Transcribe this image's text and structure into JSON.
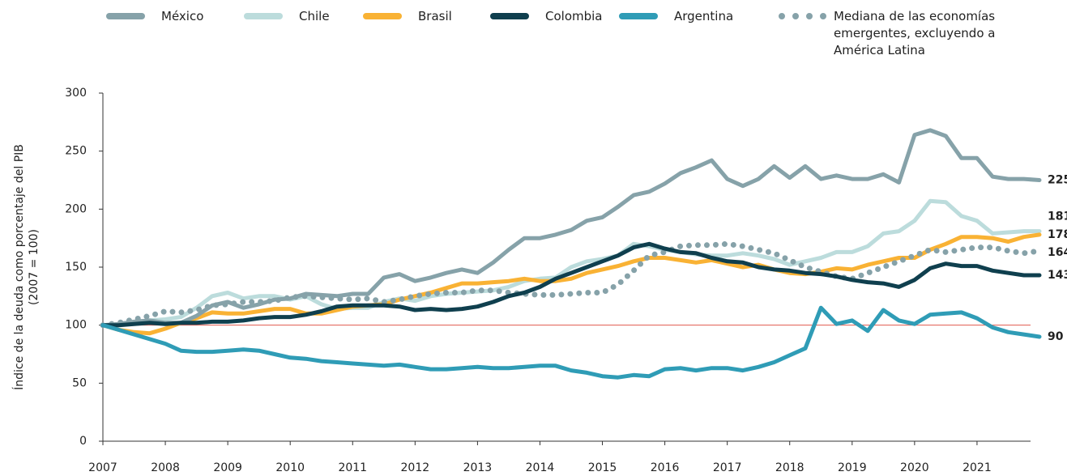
{
  "chart_data": {
    "type": "line",
    "ylabel": [
      "Índice de la deuda como porcentaje del PIB",
      "(2007 = 100)"
    ],
    "x": [
      2007,
      2007.25,
      2007.5,
      2007.75,
      2008,
      2008.25,
      2008.5,
      2008.75,
      2009,
      2009.25,
      2009.5,
      2009.75,
      2010,
      2010.25,
      2010.5,
      2010.75,
      2011,
      2011.25,
      2011.5,
      2011.75,
      2012,
      2012.25,
      2012.5,
      2012.75,
      2013,
      2013.25,
      2013.5,
      2013.75,
      2014,
      2014.25,
      2014.5,
      2014.75,
      2015,
      2015.25,
      2015.5,
      2015.75,
      2016,
      2016.25,
      2016.5,
      2016.75,
      2017,
      2017.25,
      2017.5,
      2017.75,
      2018,
      2018.25,
      2018.5,
      2018.75,
      2019,
      2019.25,
      2019.5,
      2019.75,
      2020,
      2020.25,
      2020.5,
      2020.75,
      2021,
      2021.25,
      2021.5,
      2021.75,
      2022
    ],
    "xlim": [
      2007,
      2022
    ],
    "xticks": [
      2007,
      2008,
      2009,
      2010,
      2011,
      2012,
      2013,
      2014,
      2015,
      2016,
      2017,
      2018,
      2019,
      2020,
      2021
    ],
    "ylim": [
      0,
      300
    ],
    "yticks": [
      0,
      50,
      100,
      150,
      200,
      250,
      300
    ],
    "reference_line": {
      "value": 100,
      "color": "#e05a4e"
    },
    "series": [
      {
        "name": "México",
        "color": "#86a2a9",
        "style": "solid",
        "values": [
          100,
          101,
          103,
          104,
          102,
          102,
          108,
          117,
          120,
          115,
          118,
          122,
          123,
          127,
          126,
          125,
          127,
          127,
          141,
          144,
          138,
          141,
          145,
          148,
          145,
          154,
          165,
          175,
          175,
          178,
          182,
          190,
          193,
          202,
          212,
          215,
          222,
          231,
          236,
          242,
          226,
          220,
          226,
          237,
          227,
          237,
          226,
          229,
          226,
          226,
          230,
          223,
          264,
          268,
          263,
          244,
          244,
          228,
          226,
          226,
          225
        ]
      },
      {
        "name": "Chile",
        "color": "#bcdcdc",
        "style": "solid",
        "values": [
          100,
          100,
          102,
          104,
          105,
          107,
          115,
          125,
          128,
          123,
          125,
          125,
          122,
          125,
          118,
          114,
          115,
          115,
          120,
          123,
          121,
          125,
          127,
          128,
          129,
          130,
          133,
          138,
          140,
          141,
          150,
          155,
          157,
          160,
          170,
          168,
          165,
          163,
          161,
          160,
          160,
          162,
          160,
          157,
          152,
          155,
          158,
          163,
          163,
          168,
          179,
          181,
          190,
          207,
          206,
          194,
          190,
          179,
          180,
          181,
          181
        ]
      },
      {
        "name": "Brasil",
        "color": "#f9b234",
        "style": "solid",
        "values": [
          100,
          96,
          94,
          93,
          97,
          102,
          106,
          111,
          110,
          110,
          112,
          114,
          114,
          110,
          110,
          113,
          116,
          117,
          118,
          122,
          125,
          128,
          132,
          136,
          136,
          137,
          138,
          140,
          138,
          138,
          140,
          145,
          148,
          151,
          155,
          158,
          158,
          156,
          154,
          156,
          153,
          150,
          152,
          148,
          145,
          144,
          146,
          149,
          148,
          152,
          155,
          158,
          158,
          165,
          170,
          176,
          176,
          175,
          172,
          176,
          178
        ]
      },
      {
        "name": "Colombia",
        "color": "#0f3f4e",
        "style": "solid",
        "values": [
          100,
          100,
          101,
          102,
          101,
          102,
          102,
          103,
          103,
          104,
          106,
          107,
          107,
          109,
          112,
          116,
          117,
          117,
          117,
          116,
          113,
          114,
          113,
          114,
          116,
          120,
          125,
          128,
          133,
          140,
          145,
          150,
          155,
          160,
          167,
          170,
          166,
          163,
          162,
          158,
          155,
          154,
          150,
          148,
          147,
          145,
          144,
          142,
          139,
          137,
          136,
          133,
          139,
          149,
          153,
          151,
          151,
          147,
          145,
          143,
          143
        ]
      },
      {
        "name": "Argentina",
        "color": "#2f9cb6",
        "style": "solid",
        "values": [
          100,
          96,
          92,
          88,
          84,
          78,
          77,
          77,
          78,
          79,
          78,
          75,
          72,
          71,
          69,
          68,
          67,
          66,
          65,
          66,
          64,
          62,
          62,
          63,
          64,
          63,
          63,
          64,
          65,
          65,
          61,
          59,
          56,
          55,
          57,
          56,
          62,
          63,
          61,
          63,
          63,
          61,
          64,
          68,
          74,
          80,
          115,
          101,
          104,
          95,
          113,
          104,
          101,
          109,
          110,
          111,
          106,
          98,
          94,
          92,
          90
        ]
      },
      {
        "name": "Mediana de las economías emergentes, excluyendo a América Latina",
        "color": "#86a2a9",
        "style": "dotted",
        "values": [
          100,
          102,
          105,
          108,
          112,
          111,
          113,
          117,
          118,
          120,
          120,
          121,
          124,
          125,
          124,
          123,
          122,
          123,
          120,
          122,
          125,
          127,
          128,
          128,
          130,
          130,
          128,
          127,
          126,
          126,
          127,
          128,
          128,
          135,
          147,
          160,
          163,
          168,
          169,
          169,
          170,
          168,
          165,
          162,
          156,
          150,
          146,
          142,
          140,
          145,
          150,
          155,
          160,
          165,
          163,
          165,
          167,
          167,
          164,
          162,
          164
        ]
      }
    ]
  }
}
